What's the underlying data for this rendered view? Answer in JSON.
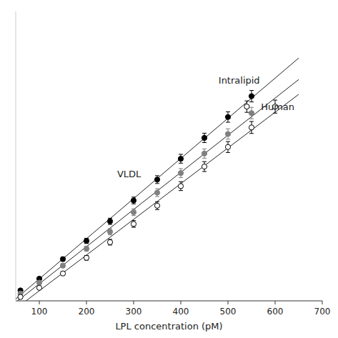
{
  "chart_data": {
    "type": "scatter",
    "title": "",
    "xlabel": "LPL concentration (pM)",
    "xlim": [
      50,
      700
    ],
    "ylim": [
      -0.01,
      1.1
    ],
    "xticks": [
      100,
      200,
      300,
      400,
      500,
      600,
      700
    ],
    "yticks": [],
    "tick_labels": "x",
    "grid": false,
    "series": [
      {
        "color": "black",
        "marker": "circle",
        "x": [
          60,
          100,
          150,
          200,
          250,
          300,
          350,
          400,
          450,
          500,
          550
        ],
        "values": [
          0.03,
          0.075,
          0.15,
          0.22,
          0.295,
          0.375,
          0.455,
          0.535,
          0.615,
          0.695,
          0.775
        ],
        "errors": [
          0.004,
          0.006,
          0.008,
          0.01,
          0.012,
          0.013,
          0.015,
          0.017,
          0.018,
          0.02,
          0.022
        ],
        "fit": {
          "x": [
            50,
            650
          ],
          "values": [
            -0.0027854,
            0.921267
          ]
        }
      },
      {
        "color": "#808080",
        "marker": "circle",
        "x": [
          60,
          100,
          150,
          200,
          250,
          300,
          350,
          400,
          450,
          500,
          550
        ],
        "values": [
          0.018,
          0.06,
          0.125,
          0.19,
          0.255,
          0.33,
          0.405,
          0.48,
          0.555,
          0.63,
          0.71
        ],
        "errors": [
          0.004,
          0.006,
          0.008,
          0.01,
          0.012,
          0.013,
          0.015,
          0.017,
          0.018,
          0.02,
          0.022
        ],
        "fit": {
          "x": [
            50,
            650
          ],
          "values": [
            -0.0158012,
            0.8389413
          ]
        }
      },
      {
        "color": "black",
        "marker": "open-circle",
        "x": [
          60,
          100,
          150,
          200,
          250,
          300,
          350,
          400,
          450,
          500,
          550,
          600
        ],
        "values": [
          0.005,
          0.04,
          0.095,
          0.155,
          0.215,
          0.285,
          0.355,
          0.43,
          0.505,
          0.58,
          0.655,
          0.735
        ],
        "errors": [
          0.003,
          0.005,
          0.007,
          0.009,
          0.011,
          0.013,
          0.015,
          0.017,
          0.019,
          0.021,
          0.023,
          0.025
        ],
        "fit": {
          "x": [
            50,
            650
          ],
          "values": [
            -0.0399204,
            0.7819608
          ]
        }
      }
    ],
    "annotations": [
      {
        "text": "VLDL",
        "x": 265,
        "y": 0.455
      },
      {
        "text": "Intralipid",
        "x": 480,
        "y": 0.815
      }
    ],
    "key": {
      "text": "Human",
      "x": 570,
      "y": 0.735,
      "symbol_x": 540,
      "symbol_y": 0.735,
      "error": 0.022
    }
  }
}
